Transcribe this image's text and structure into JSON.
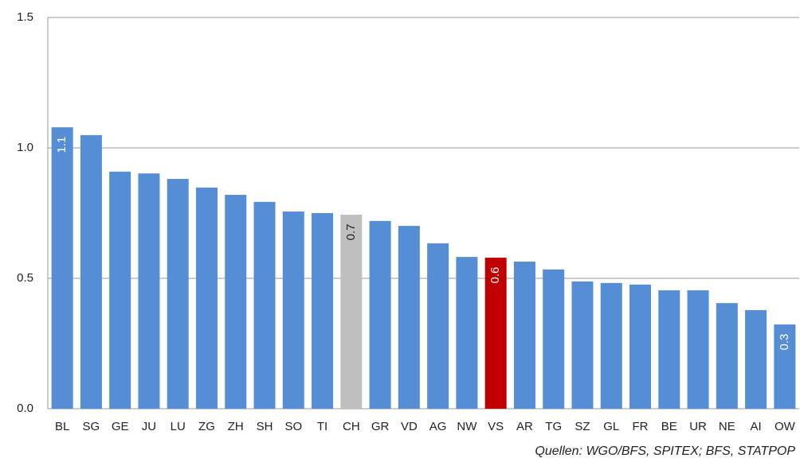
{
  "chart_data": {
    "type": "bar",
    "categories": [
      "BL",
      "SG",
      "GE",
      "JU",
      "LU",
      "ZG",
      "ZH",
      "SH",
      "SO",
      "TI",
      "CH",
      "GR",
      "VD",
      "AG",
      "NW",
      "VS",
      "AR",
      "TG",
      "SZ",
      "GL",
      "FR",
      "BE",
      "UR",
      "NE",
      "AI",
      "OW"
    ],
    "values": [
      1.079,
      1.049,
      0.909,
      0.902,
      0.881,
      0.848,
      0.82,
      0.793,
      0.756,
      0.75,
      0.744,
      0.72,
      0.701,
      0.634,
      0.582,
      0.579,
      0.564,
      0.534,
      0.488,
      0.482,
      0.476,
      0.454,
      0.454,
      0.405,
      0.378,
      0.323
    ],
    "value_labels": [
      "1.1",
      null,
      null,
      null,
      null,
      null,
      null,
      null,
      null,
      null,
      "0.7",
      null,
      null,
      null,
      null,
      "0.6",
      null,
      null,
      null,
      null,
      null,
      null,
      null,
      null,
      null,
      "0.3"
    ],
    "colors": [
      "#558ed5",
      "#558ed5",
      "#558ed5",
      "#558ed5",
      "#558ed5",
      "#558ed5",
      "#558ed5",
      "#558ed5",
      "#558ed5",
      "#558ed5",
      "#bfbfbf",
      "#558ed5",
      "#558ed5",
      "#558ed5",
      "#558ed5",
      "#c00000",
      "#558ed5",
      "#558ed5",
      "#558ed5",
      "#558ed5",
      "#558ed5",
      "#558ed5",
      "#558ed5",
      "#558ed5",
      "#558ed5",
      "#558ed5"
    ],
    "ylim": [
      0,
      1.5
    ],
    "yticks": [
      {
        "value": 0,
        "label": "0.0"
      },
      {
        "value": 0.5,
        "label": "0.5"
      },
      {
        "value": 1,
        "label": "1.0"
      },
      {
        "value": 1.5,
        "label": "1.5"
      }
    ],
    "grid": true,
    "source": "Quellen: WGO/BFS, SPITEX; BFS, STATPOP"
  }
}
